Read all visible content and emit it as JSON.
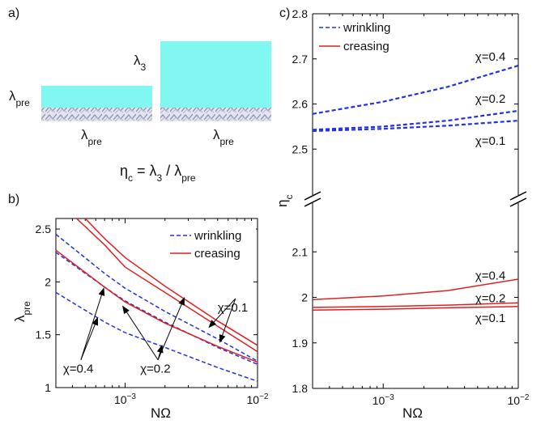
{
  "panel_labels": {
    "a": "a)",
    "b": "b)",
    "c": "c)"
  },
  "schematic": {
    "lambda_pre": "λ",
    "lambda_pre_sub": "pre",
    "lambda_3": "λ",
    "lambda_3_sub": "3",
    "eq_eta": "η",
    "eq_eta_sub": "c",
    "eq_equals": " = λ",
    "eq_sub3": "3",
    "eq_slash": " / λ",
    "eq_subpre": "pre",
    "colors": {
      "film": "#80f7f0",
      "substrate": "#bfc1d6"
    }
  },
  "chart_data": [
    {
      "type": "line",
      "panel": "b",
      "x_scale": "log",
      "xlim": [
        0.0003,
        0.01
      ],
      "ylim": [
        1,
        2.6
      ],
      "xlabel": "NΩ",
      "ylabel_main": "λ",
      "ylabel_sub": "pre",
      "x_ticks": [
        {
          "value": 0.001,
          "base": "10",
          "exp": "−3"
        },
        {
          "value": 0.01,
          "base": "10",
          "exp": "−2"
        }
      ],
      "y_ticks": [
        {
          "value": 1,
          "label": "1"
        },
        {
          "value": 1.5,
          "label": "1.5"
        },
        {
          "value": 2,
          "label": "2"
        },
        {
          "value": 2.5,
          "label": "2.5"
        }
      ],
      "legend": {
        "position": "top-right",
        "entries": [
          {
            "label": "wrinkling",
            "style": "dashed",
            "color": "#2233dd"
          },
          {
            "label": "creasing",
            "style": "solid",
            "color": "#e02020"
          }
        ]
      },
      "series": [
        {
          "kind": "wrinkling",
          "chi": 0.4,
          "color": "#2233dd",
          "style": "dashed",
          "x": [
            0.0003,
            0.0007,
            0.001,
            0.002,
            0.005,
            0.01
          ],
          "y": [
            1.9,
            1.62,
            1.52,
            1.38,
            1.19,
            1.06
          ]
        },
        {
          "kind": "wrinkling",
          "chi": 0.2,
          "color": "#2233dd",
          "style": "dashed",
          "x": [
            0.0003,
            0.0007,
            0.001,
            0.002,
            0.005,
            0.01
          ],
          "y": [
            2.28,
            1.95,
            1.82,
            1.62,
            1.38,
            1.22
          ]
        },
        {
          "kind": "wrinkling",
          "chi": 0.1,
          "color": "#2233dd",
          "style": "dashed",
          "x": [
            0.0003,
            0.0007,
            0.001,
            0.002,
            0.005,
            0.01
          ],
          "y": [
            2.45,
            2.08,
            1.94,
            1.72,
            1.46,
            1.25
          ]
        },
        {
          "kind": "creasing",
          "chi": 0.4,
          "color": "#e02020",
          "style": "solid",
          "x": [
            0.0003,
            0.0007,
            0.001,
            0.002,
            0.005,
            0.01
          ],
          "y": [
            2.3,
            1.95,
            1.81,
            1.61,
            1.39,
            1.24
          ]
        },
        {
          "kind": "creasing",
          "chi": 0.2,
          "color": "#e02020",
          "style": "solid",
          "x": [
            0.0005,
            0.0007,
            0.001,
            0.002,
            0.005,
            0.01
          ],
          "y": [
            2.6,
            2.41,
            2.23,
            1.96,
            1.63,
            1.4
          ]
        },
        {
          "kind": "creasing",
          "chi": 0.1,
          "color": "#e02020",
          "style": "solid",
          "x": [
            0.00043,
            0.0007,
            0.001,
            0.002,
            0.005,
            0.01
          ],
          "y": [
            2.6,
            2.35,
            2.14,
            1.9,
            1.58,
            1.34
          ]
        }
      ],
      "annotations": [
        {
          "label": "χ=0.1",
          "text_at": [
            0.005,
            1.72
          ],
          "arrows_to": [
            [
              0.0043,
              1.57
            ],
            [
              0.0052,
              1.43
            ]
          ]
        },
        {
          "label": "χ=0.2",
          "text_at": [
            0.0013,
            1.14
          ],
          "arrows_to": [
            [
              0.00096,
              1.77
            ],
            [
              0.0028,
              1.85
            ],
            [
              0.0019,
              1.4
            ]
          ]
        },
        {
          "label": "χ=0.4",
          "text_at": [
            0.00034,
            1.14
          ],
          "arrows_to": [
            [
              0.00069,
              1.94
            ],
            [
              0.00062,
              1.66
            ]
          ]
        }
      ]
    },
    {
      "type": "line",
      "panel": "c",
      "x_scale": "log",
      "xlim": [
        0.0003,
        0.01
      ],
      "axis_break": true,
      "ylim_upper": [
        2.4,
        2.8
      ],
      "ylim_lower": [
        1.8,
        2.2
      ],
      "xlabel": "NΩ",
      "ylabel_main": "η",
      "ylabel_sub": "c",
      "x_ticks": [
        {
          "value": 0.001,
          "base": "10",
          "exp": "−3"
        },
        {
          "value": 0.01,
          "base": "10",
          "exp": "−2"
        }
      ],
      "y_ticks_upper": [
        {
          "value": 2.5,
          "label": "2.5"
        },
        {
          "value": 2.6,
          "label": "2.6"
        },
        {
          "value": 2.7,
          "label": "2.7"
        },
        {
          "value": 2.8,
          "label": "2.8"
        }
      ],
      "y_ticks_lower": [
        {
          "value": 1.8,
          "label": "1.8"
        },
        {
          "value": 1.9,
          "label": "1.9"
        },
        {
          "value": 2.0,
          "label": "2"
        },
        {
          "value": 2.1,
          "label": "2.1"
        }
      ],
      "legend": {
        "position": "top-left",
        "entries": [
          {
            "label": "wrinkling",
            "style": "dashed",
            "color": "#2233dd"
          },
          {
            "label": "creasing",
            "style": "solid",
            "color": "#e02020"
          }
        ]
      },
      "series": [
        {
          "kind": "wrinkling",
          "chi": 0.4,
          "color": "#2233dd",
          "style": "dashed",
          "x": [
            0.0003,
            0.001,
            0.003,
            0.01
          ],
          "y": [
            2.578,
            2.605,
            2.638,
            2.685
          ]
        },
        {
          "kind": "wrinkling",
          "chi": 0.2,
          "color": "#2233dd",
          "style": "dashed",
          "x": [
            0.0003,
            0.001,
            0.003,
            0.01
          ],
          "y": [
            2.543,
            2.55,
            2.563,
            2.585
          ]
        },
        {
          "kind": "wrinkling",
          "chi": 0.1,
          "color": "#2233dd",
          "style": "dashed",
          "x": [
            0.0003,
            0.001,
            0.003,
            0.01
          ],
          "y": [
            2.54,
            2.545,
            2.552,
            2.563
          ]
        },
        {
          "kind": "creasing",
          "chi": 0.4,
          "color": "#e02020",
          "style": "solid",
          "x": [
            0.0003,
            0.001,
            0.003,
            0.01
          ],
          "y": [
            1.995,
            2.003,
            2.015,
            2.04
          ]
        },
        {
          "kind": "creasing",
          "chi": 0.2,
          "color": "#e02020",
          "style": "solid",
          "x": [
            0.0003,
            0.001,
            0.003,
            0.01
          ],
          "y": [
            1.978,
            1.98,
            1.983,
            1.988
          ]
        },
        {
          "kind": "creasing",
          "chi": 0.1,
          "color": "#e02020",
          "style": "solid",
          "x": [
            0.0003,
            0.001,
            0.003,
            0.01
          ],
          "y": [
            1.972,
            1.974,
            1.977,
            1.98
          ]
        }
      ],
      "labels": [
        {
          "text": "χ=0.4",
          "at": [
            0.0048,
            2.705
          ]
        },
        {
          "text": "χ=0.2",
          "at": [
            0.0048,
            2.612
          ]
        },
        {
          "text": "χ=0.1",
          "at": [
            0.0048,
            2.518
          ]
        },
        {
          "text": "χ=0.4",
          "at": [
            0.0048,
            2.048
          ]
        },
        {
          "text": "χ=0.2",
          "at": [
            0.0048,
            1.998
          ]
        },
        {
          "text": "χ=0.1",
          "at": [
            0.0048,
            1.955
          ]
        }
      ]
    }
  ]
}
